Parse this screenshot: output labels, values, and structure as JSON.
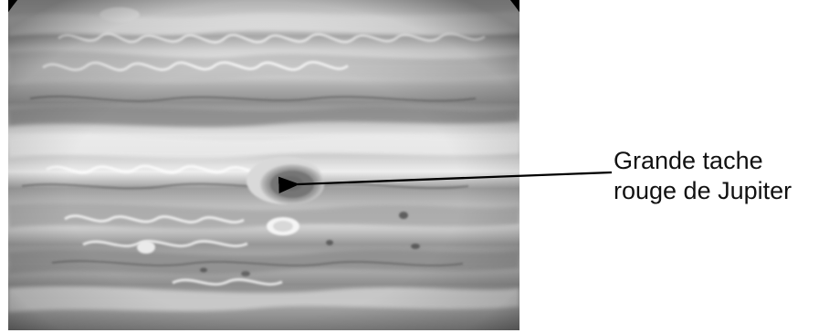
{
  "annotation": {
    "line1": "Grande tache",
    "line2": "rouge de Jupiter"
  },
  "image": {
    "subject": "Jupiter",
    "style": "grayscale"
  },
  "colors": {
    "background": "#000000",
    "arrow": "#000000",
    "text": "#111111"
  }
}
